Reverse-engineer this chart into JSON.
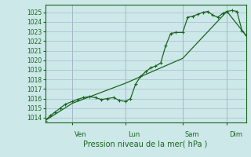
{
  "xlabel": "Pression niveau de la mer( hPa )",
  "bg_color": "#cce8e8",
  "grid_color": "#aabbd0",
  "line_color": "#1a6620",
  "marker_color": "#1a6620",
  "ylim": [
    1013.5,
    1025.8
  ],
  "yticks": [
    1014,
    1015,
    1016,
    1017,
    1018,
    1019,
    1020,
    1021,
    1022,
    1023,
    1024,
    1025
  ],
  "x_day_labels": [
    [
      "Ven",
      0.135
    ],
    [
      "Lun",
      0.4
    ],
    [
      "Sam",
      0.685
    ],
    [
      "Dim",
      0.905
    ]
  ],
  "vline_color": "#99aabb",
  "line1_x": [
    0.0,
    0.025,
    0.05,
    0.075,
    0.1,
    0.135,
    0.16,
    0.19,
    0.22,
    0.25,
    0.28,
    0.31,
    0.34,
    0.37,
    0.4,
    0.425,
    0.45,
    0.475,
    0.5,
    0.525,
    0.55,
    0.575,
    0.6,
    0.625,
    0.65,
    0.685,
    0.71,
    0.735,
    0.76,
    0.785,
    0.81,
    0.835,
    0.86,
    0.885,
    0.905,
    0.93,
    0.955,
    0.98,
    1.0
  ],
  "line1_y": [
    1013.7,
    1014.2,
    1014.6,
    1015.0,
    1015.4,
    1015.7,
    1015.9,
    1016.1,
    1016.2,
    1016.1,
    1015.9,
    1016.0,
    1016.1,
    1015.8,
    1015.7,
    1016.0,
    1017.5,
    1018.3,
    1018.8,
    1019.2,
    1019.4,
    1019.7,
    1021.5,
    1022.8,
    1022.9,
    1022.9,
    1024.5,
    1024.6,
    1024.8,
    1025.0,
    1025.1,
    1024.7,
    1024.5,
    1024.9,
    1025.1,
    1025.2,
    1025.1,
    1023.1,
    1022.6
  ],
  "line2_x": [
    0.0,
    0.135,
    0.4,
    0.685,
    0.905,
    1.0
  ],
  "line2_y": [
    1013.7,
    1015.5,
    1017.6,
    1020.2,
    1025.1,
    1022.6
  ],
  "figsize": [
    3.2,
    2.0
  ],
  "dpi": 100
}
